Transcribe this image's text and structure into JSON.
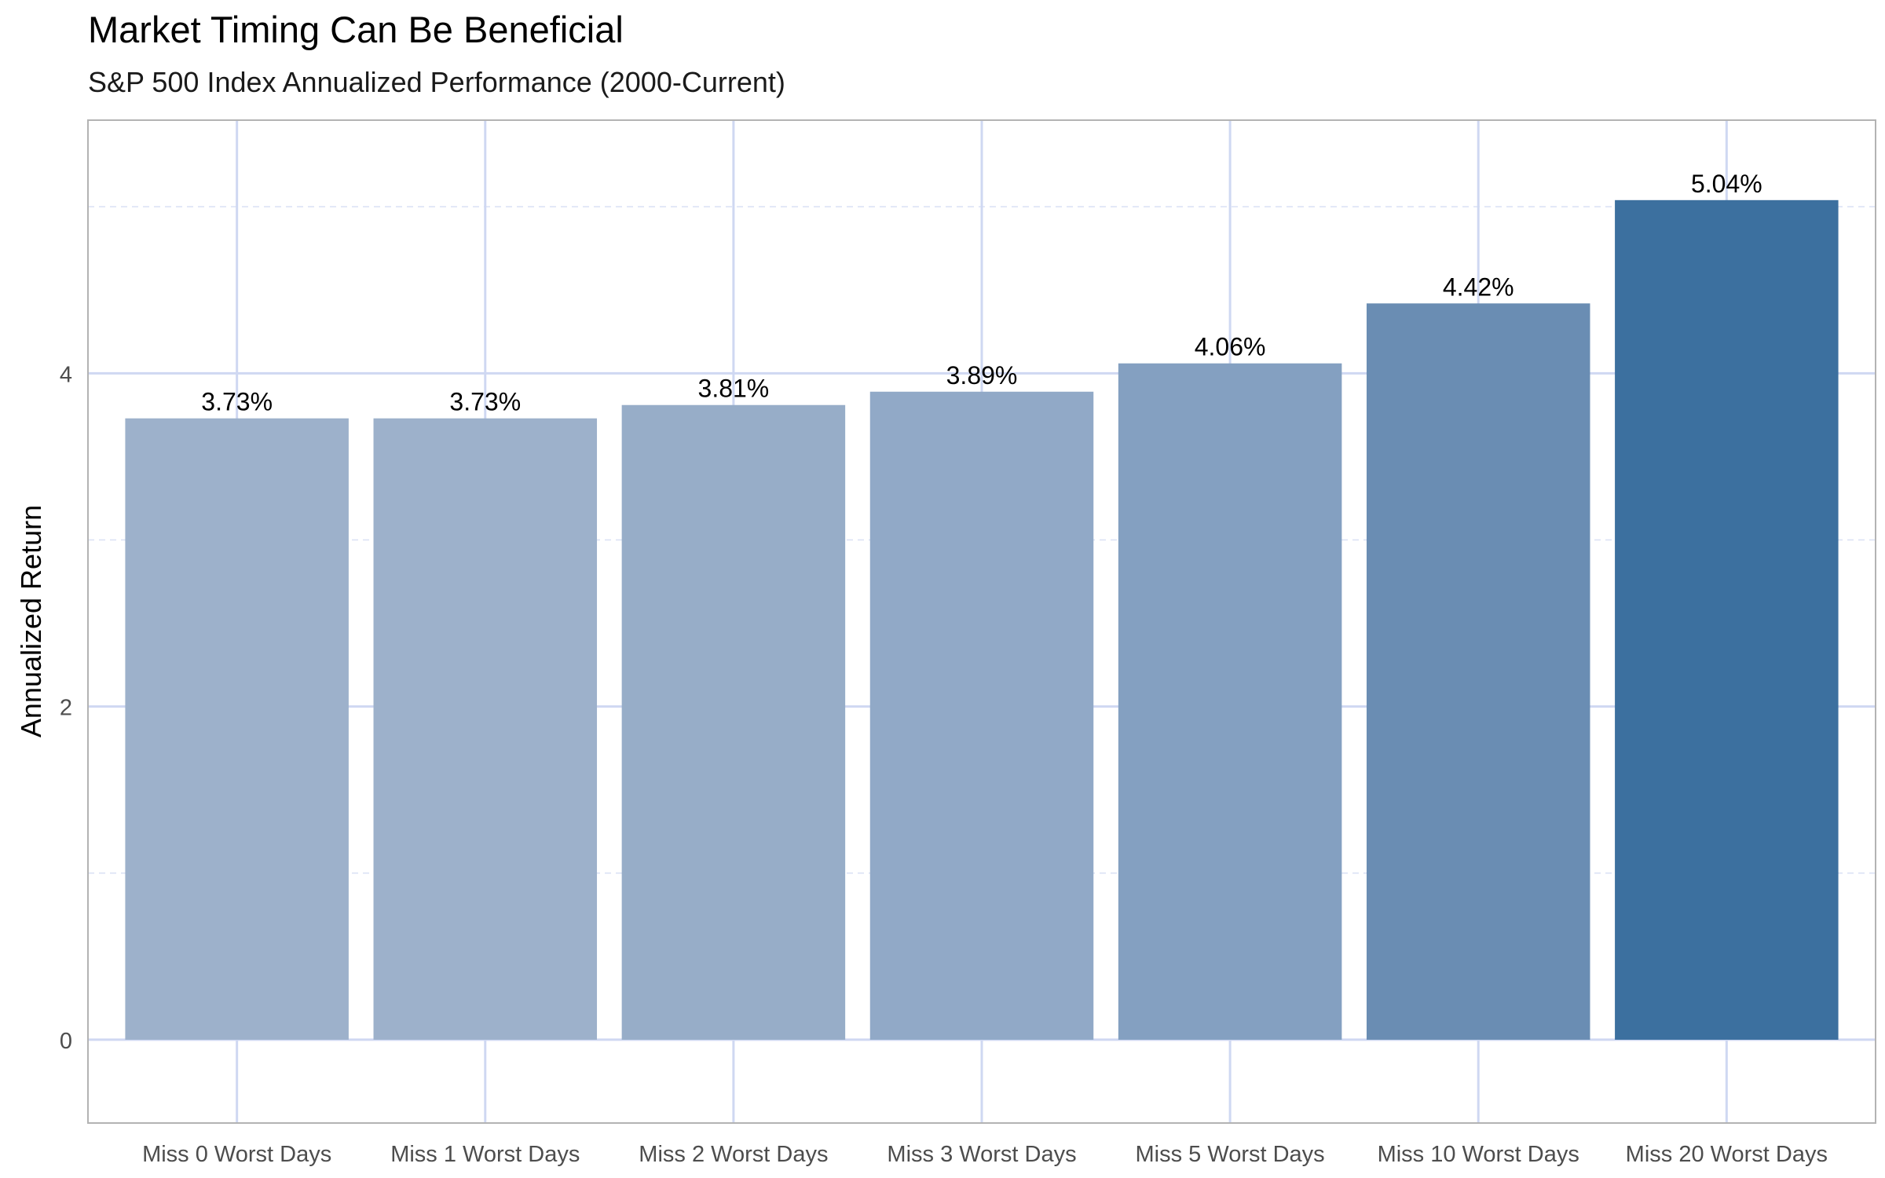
{
  "chart_data": {
    "type": "bar",
    "title": "Market Timing Can Be Beneficial",
    "subtitle": "S&P 500 Index Annualized Performance (2000-Current)",
    "xlabel": "",
    "ylabel": "Annualized Return",
    "categories": [
      "Miss 0 Worst Days",
      "Miss 1 Worst Days",
      "Miss 2 Worst Days",
      "Miss 3 Worst Days",
      "Miss 5 Worst Days",
      "Miss 10 Worst Days",
      "Miss 20 Worst Days"
    ],
    "values": [
      3.73,
      3.73,
      3.81,
      3.89,
      4.06,
      4.42,
      5.04
    ],
    "value_labels": [
      "3.73%",
      "3.73%",
      "3.81%",
      "3.89%",
      "4.06%",
      "4.42%",
      "5.04%"
    ],
    "bar_colors": [
      "#9db1cb",
      "#9db1cb",
      "#97adc8",
      "#91a9c7",
      "#84a0c1",
      "#6a8db3",
      "#3c709f"
    ],
    "yticks": [
      0,
      2,
      4
    ],
    "ytick_labels": [
      "0",
      "2",
      "4"
    ],
    "ylim": [
      -0.5,
      5.52
    ],
    "grid": true,
    "legend": "none"
  }
}
